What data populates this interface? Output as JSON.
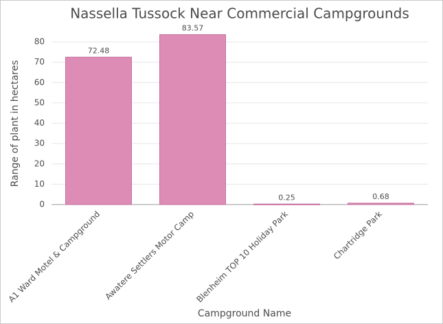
{
  "chart_data": {
    "type": "bar",
    "title": "Nassella Tussock Near Commercial Campgrounds",
    "x_label": "Campground Name",
    "y_label": "Range of plant in hectares",
    "categories": [
      "A1 Ward Motel & Campground",
      "Awatere Settlers Motor Camp",
      "Blenheim TOP 10 Holiday Park",
      "Chartridge Park"
    ],
    "values": [
      72.48,
      83.57,
      0.25,
      0.68
    ],
    "color": "#dd8db5",
    "ylim": [
      0,
      85
    ],
    "yticks": [
      0,
      10,
      20,
      30,
      40,
      50,
      60,
      70,
      80
    ],
    "grid": true
  }
}
